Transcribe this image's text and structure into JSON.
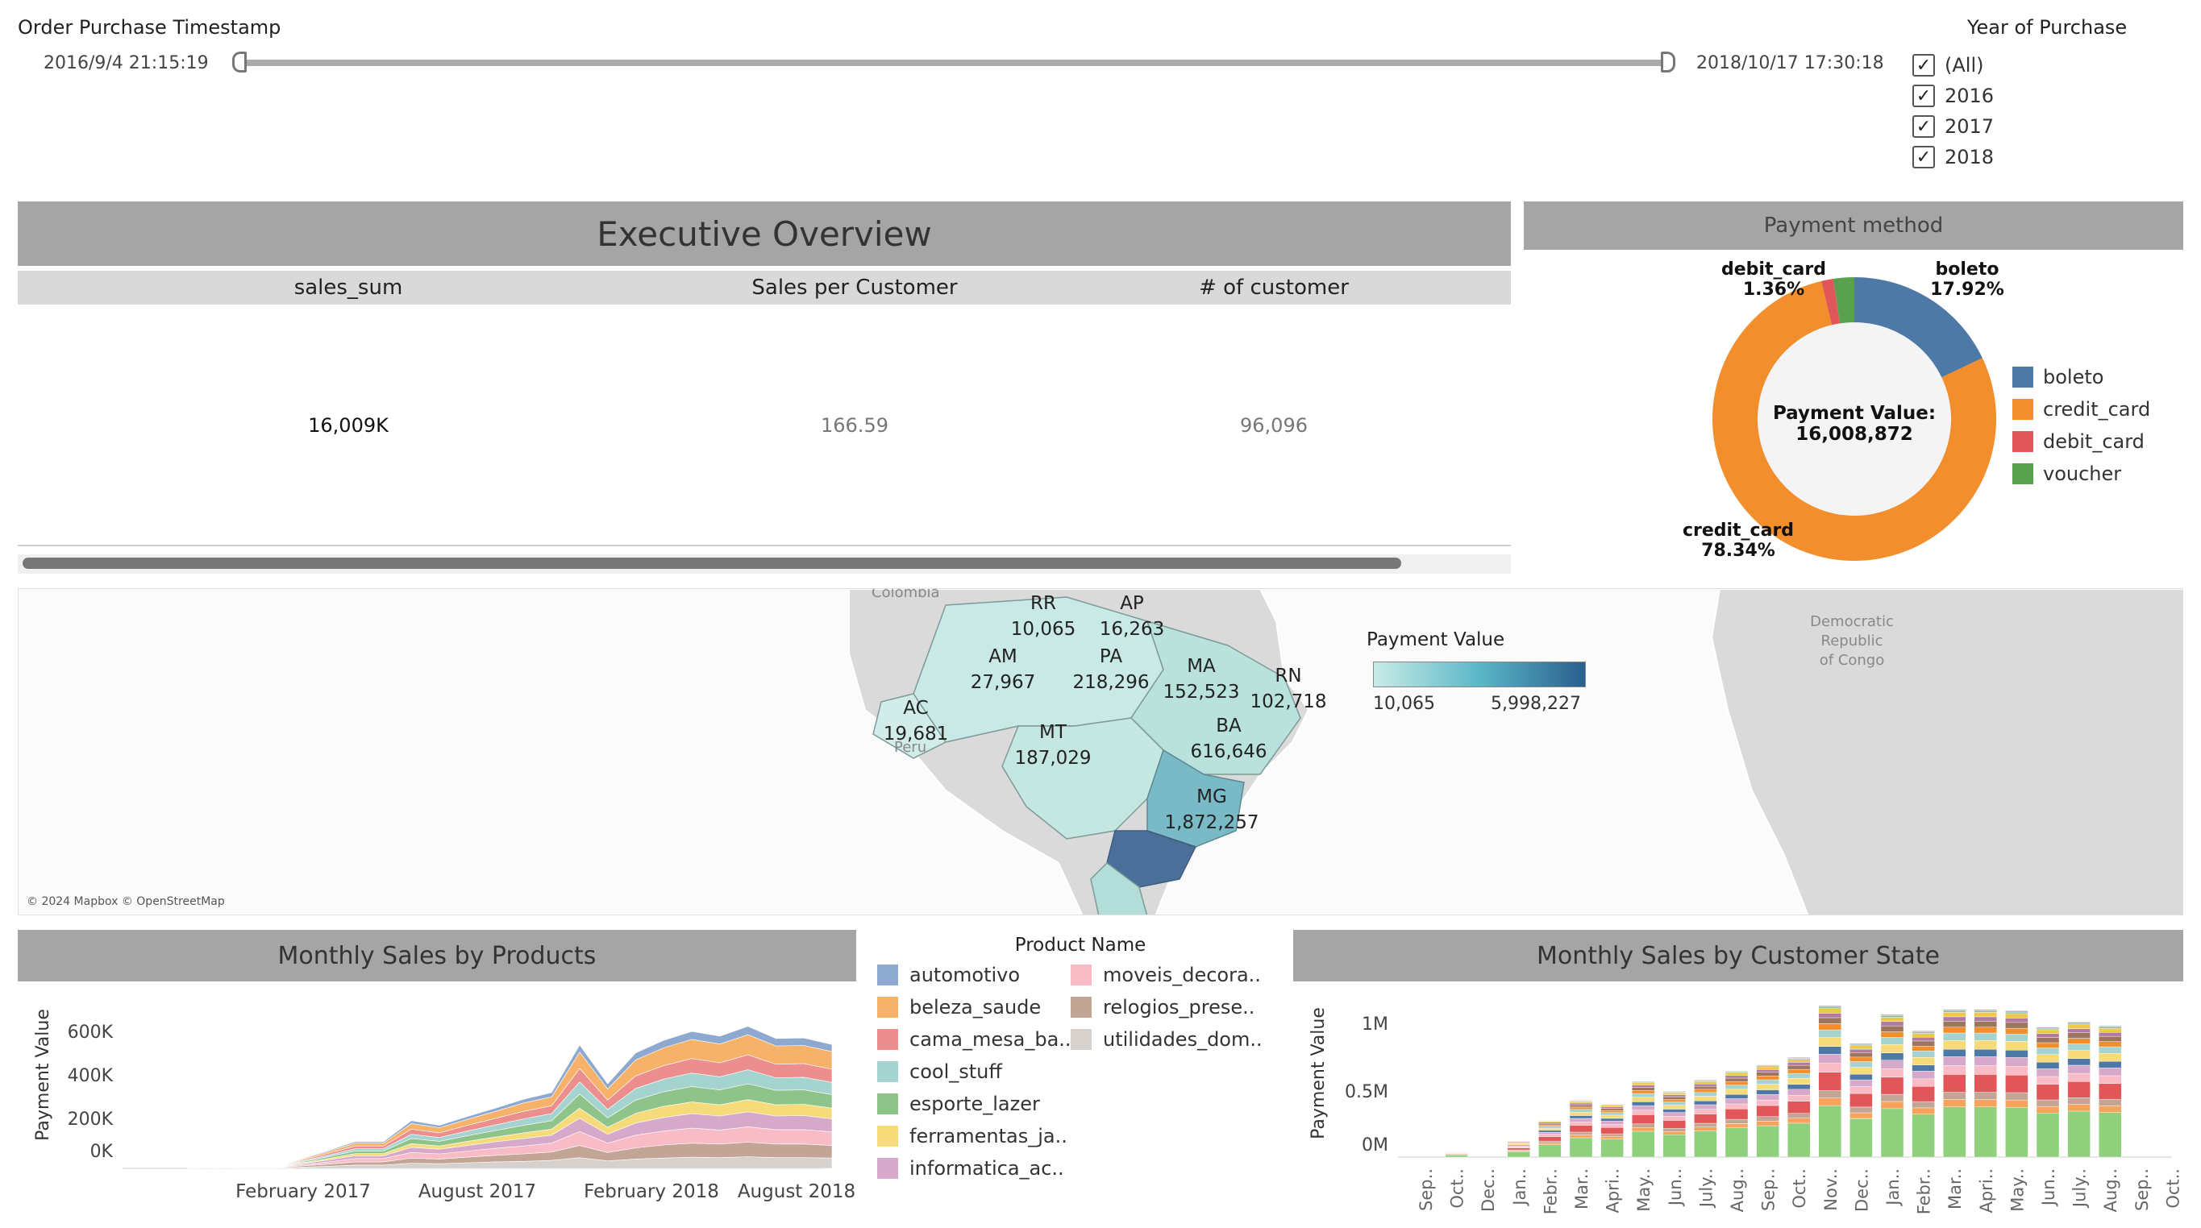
{
  "filters": {
    "timestamp": {
      "title": "Order Purchase Timestamp",
      "start": "2016/9/4 21:15:19",
      "end": "2018/10/17 17:30:18"
    },
    "year": {
      "title": "Year of Purchase",
      "options": [
        {
          "label": "(All)",
          "checked": true
        },
        {
          "label": "2016",
          "checked": true
        },
        {
          "label": "2017",
          "checked": true
        },
        {
          "label": "2018",
          "checked": true
        }
      ]
    }
  },
  "overview": {
    "title": "Executive Overview",
    "columns": [
      "sales_sum",
      "Sales per Customer",
      "# of customer"
    ],
    "values": [
      "16,009K",
      "166.59",
      "96,096"
    ]
  },
  "payment": {
    "title": "Payment method",
    "center_label": "Payment Value: 16,008,872",
    "legend": [
      {
        "name": "boleto",
        "color": "#4e79a7"
      },
      {
        "name": "credit_card",
        "color": "#f28e2b"
      },
      {
        "name": "debit_card",
        "color": "#e15759"
      },
      {
        "name": "voucher",
        "color": "#59a14f"
      }
    ],
    "labels": {
      "debit_name": "debit_card",
      "debit_pct": "1.36%",
      "boleto_name": "boleto",
      "boleto_pct": "17.92%",
      "credit_name": "credit_card",
      "credit_pct": "78.34%"
    }
  },
  "map": {
    "legend_title": "Payment Value",
    "legend_min": "10,065",
    "legend_max": "5,998,227",
    "attribution": "© 2024 Mapbox © OpenStreetMap",
    "place_labels": [
      "Colombia",
      "Peru",
      "Democratic",
      "Republic",
      "of Congo"
    ],
    "states": [
      {
        "code": "RR",
        "value": "10,065"
      },
      {
        "code": "AP",
        "value": "16,263"
      },
      {
        "code": "AM",
        "value": "27,967"
      },
      {
        "code": "PA",
        "value": "218,296"
      },
      {
        "code": "MA",
        "value": "152,523"
      },
      {
        "code": "RN",
        "value": "102,718"
      },
      {
        "code": "AC",
        "value": "19,681"
      },
      {
        "code": "MT",
        "value": "187,029"
      },
      {
        "code": "BA",
        "value": "616,646"
      },
      {
        "code": "MG",
        "value": "1,872,257"
      }
    ]
  },
  "products_chart": {
    "title": "Monthly Sales by Products",
    "ylabel": "Payment Value",
    "yticks": [
      "600K",
      "400K",
      "200K",
      "0K"
    ],
    "xticks": [
      "February 2017",
      "August 2017",
      "February 2018",
      "August 2018"
    ],
    "legend_title": "Product Name",
    "legend": [
      {
        "name": "automotivo",
        "color": "#8da9cf"
      },
      {
        "name": "beleza_saude",
        "color": "#f7b26a"
      },
      {
        "name": "cama_mesa_ba..",
        "color": "#ec8e8e"
      },
      {
        "name": "cool_stuff",
        "color": "#a5d4d0"
      },
      {
        "name": "esporte_lazer",
        "color": "#8ec48a"
      },
      {
        "name": "ferramentas_ja..",
        "color": "#f6db7a"
      },
      {
        "name": "informatica_ac..",
        "color": "#d6a8ca"
      },
      {
        "name": "moveis_decora..",
        "color": "#f9bcc6"
      },
      {
        "name": "relogios_prese..",
        "color": "#c2a595"
      },
      {
        "name": "utilidades_dom..",
        "color": "#d6d1cc"
      }
    ]
  },
  "chart_data": [
    {
      "type": "pie",
      "title": "Payment method",
      "categories": [
        "boleto",
        "credit_card",
        "debit_card",
        "voucher"
      ],
      "values": [
        17.92,
        78.34,
        1.36,
        2.38
      ]
    },
    {
      "type": "area",
      "title": "Monthly Sales by Products",
      "ylabel": "Payment Value",
      "x": [
        "Sep 2016",
        "Oct 2016",
        "Nov 2016",
        "Dec 2016",
        "Jan 2017",
        "Feb 2017",
        "Mar 2017",
        "Apr 2017",
        "May 2017",
        "Jun 2017",
        "Jul 2017",
        "Aug 2017",
        "Sep 2017",
        "Oct 2017",
        "Nov 2017",
        "Dec 2017",
        "Jan 2018",
        "Feb 2018",
        "Mar 2018",
        "Apr 2018",
        "May 2018",
        "Jun 2018",
        "Jul 2018",
        "Aug 2018"
      ],
      "series": [
        {
          "name": "utilidades_dom..",
          "values": [
            0,
            2000,
            0,
            0,
            5000,
            9000,
            14000,
            14000,
            22000,
            20000,
            24000,
            28000,
            30000,
            34000,
            46000,
            32000,
            40000,
            44000,
            48000,
            46000,
            50000,
            46000,
            46000,
            44000
          ]
        },
        {
          "name": "relogios_prese..",
          "values": [
            0,
            2000,
            0,
            0,
            5000,
            9000,
            14000,
            14000,
            22000,
            20000,
            24000,
            28000,
            32000,
            36000,
            52000,
            36000,
            48000,
            56000,
            60000,
            58000,
            62000,
            58000,
            58000,
            54000
          ]
        },
        {
          "name": "moveis_decora..",
          "values": [
            0,
            2000,
            0,
            0,
            5000,
            9000,
            14000,
            14000,
            24000,
            22000,
            26000,
            30000,
            34000,
            38000,
            60000,
            40000,
            54000,
            60000,
            64000,
            60000,
            66000,
            62000,
            62000,
            58000
          ]
        },
        {
          "name": "informatica_ac..",
          "values": [
            0,
            1000,
            0,
            0,
            4000,
            8000,
            12000,
            12000,
            22000,
            20000,
            24000,
            28000,
            32000,
            34000,
            56000,
            38000,
            52000,
            58000,
            62000,
            60000,
            64000,
            58000,
            60000,
            56000
          ]
        },
        {
          "name": "ferramentas_ja..",
          "values": [
            0,
            1000,
            0,
            0,
            3000,
            6000,
            9000,
            9000,
            16000,
            14000,
            18000,
            20000,
            24000,
            26000,
            44000,
            30000,
            42000,
            48000,
            50000,
            48000,
            52000,
            48000,
            48000,
            46000
          ]
        },
        {
          "name": "esporte_lazer",
          "values": [
            0,
            1000,
            0,
            0,
            4000,
            8000,
            12000,
            12000,
            22000,
            20000,
            24000,
            28000,
            32000,
            36000,
            60000,
            40000,
            56000,
            62000,
            66000,
            64000,
            68000,
            62000,
            62000,
            58000
          ]
        },
        {
          "name": "cool_stuff",
          "values": [
            0,
            1000,
            0,
            0,
            3000,
            6000,
            9000,
            9000,
            18000,
            16000,
            20000,
            24000,
            28000,
            30000,
            52000,
            36000,
            50000,
            54000,
            58000,
            56000,
            60000,
            54000,
            54000,
            52000
          ]
        },
        {
          "name": "cama_mesa_ba..",
          "values": [
            0,
            1000,
            0,
            0,
            4000,
            8000,
            12000,
            12000,
            22000,
            20000,
            24000,
            28000,
            32000,
            34000,
            58000,
            40000,
            54000,
            58000,
            62000,
            60000,
            64000,
            58000,
            58000,
            56000
          ]
        },
        {
          "name": "beleza_saude",
          "values": [
            0,
            1000,
            0,
            0,
            4000,
            8000,
            12000,
            12000,
            24000,
            22000,
            26000,
            30000,
            36000,
            38000,
            70000,
            48000,
            68000,
            76000,
            82000,
            80000,
            86000,
            78000,
            78000,
            76000
          ]
        },
        {
          "name": "automotivo",
          "values": [
            0,
            1000,
            0,
            0,
            2000,
            4000,
            6000,
            6000,
            12000,
            10000,
            12000,
            14000,
            16000,
            18000,
            30000,
            22000,
            30000,
            32000,
            34000,
            34000,
            36000,
            32000,
            32000,
            30000
          ]
        }
      ]
    },
    {
      "type": "bar",
      "title": "Monthly Sales by Customer State",
      "ylabel": "Payment Value",
      "categories": [
        "Sep..",
        "Oct..",
        "Dec..",
        "Jan..",
        "Febr..",
        "Mar..",
        "Apri..",
        "May..",
        "Jun..",
        "July..",
        "Aug..",
        "Sep..",
        "Oct..",
        "Nov..",
        "Dec..",
        "Jan..",
        "Febr..",
        "Mar..",
        "Apri..",
        "May..",
        "Jun..",
        "July..",
        "Aug..",
        "Sep..",
        "Oct.."
      ],
      "values": [
        0,
        50000,
        0,
        130000,
        290000,
        450000,
        420000,
        600000,
        520000,
        610000,
        680000,
        730000,
        790000,
        1200000,
        900000,
        1130000,
        1000000,
        1170000,
        1170000,
        1160000,
        1030000,
        1070000,
        1040000,
        0,
        0
      ],
      "yticks": [
        "1M",
        "0.5M",
        "0M"
      ]
    }
  ],
  "state_chart": {
    "title": "Monthly Sales by Customer State",
    "ylabel": "Payment Value",
    "yticks": [
      "1M",
      "0.5M",
      "0M"
    ],
    "xticks": [
      "Sep..",
      "Oct..",
      "Dec..",
      "Jan..",
      "Febr..",
      "Mar..",
      "Apri..",
      "May..",
      "Jun..",
      "July..",
      "Aug..",
      "Sep..",
      "Oct..",
      "Nov..",
      "Dec..",
      "Jan..",
      "Febr..",
      "Mar..",
      "Apri..",
      "May..",
      "Jun..",
      "July..",
      "Aug..",
      "Sep..",
      "Oct.."
    ],
    "colors": [
      "#8ed07c",
      "#f7a35c",
      "#c2a595",
      "#e15759",
      "#f9bcc6",
      "#d6a8ca",
      "#4e79a7",
      "#f6db7a",
      "#a5d4d0",
      "#f28e2b",
      "#9c755f",
      "#b07aa1",
      "#edc948",
      "#76b7b2",
      "#bab0ac"
    ]
  }
}
